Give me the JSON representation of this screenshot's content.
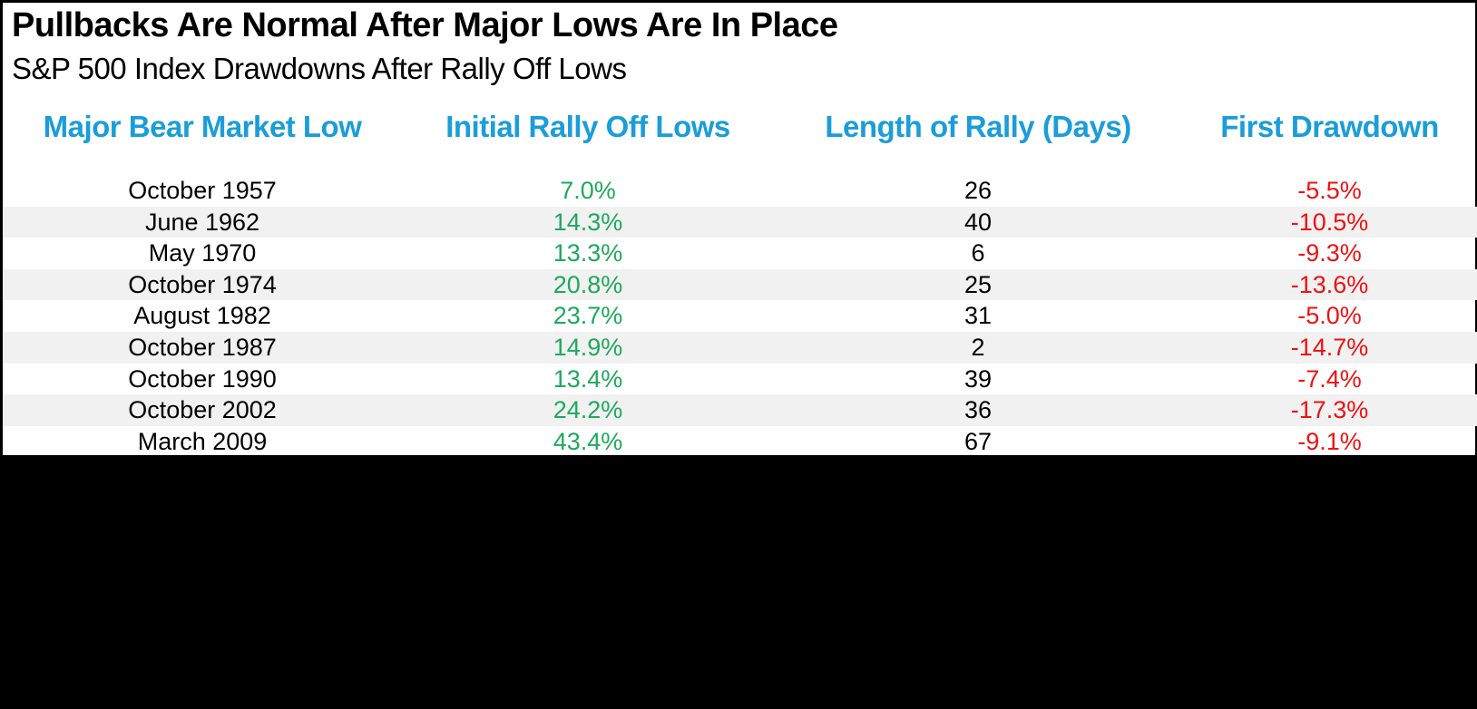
{
  "colors": {
    "accent-blue": "#1B9DD9",
    "positive-green": "#1EA95C",
    "negative-red": "#EE1111",
    "row-stripe": "#F1F1F1",
    "text-black": "#000000",
    "panel-bg": "#FFFFFF",
    "backdrop": "#000000"
  },
  "header": {
    "title": "Pullbacks Are Normal After Major Lows Are In Place",
    "subtitle": "S&P 500 Index Drawdowns After Rally Off Lows"
  },
  "table": {
    "columns": [
      "Major Bear Market Low",
      "Initial Rally Off Lows",
      "Length of Rally (Days)",
      "First Drawdown"
    ],
    "rows": [
      {
        "low": "October 1957",
        "rally": "7.0%",
        "days": "26",
        "drawdown": "-5.5%"
      },
      {
        "low": "June 1962",
        "rally": "14.3%",
        "days": "40",
        "drawdown": "-10.5%"
      },
      {
        "low": "May 1970",
        "rally": "13.3%",
        "days": "6",
        "drawdown": "-9.3%"
      },
      {
        "low": "October 1974",
        "rally": "20.8%",
        "days": "25",
        "drawdown": "-13.6%"
      },
      {
        "low": "August 1982",
        "rally": "23.7%",
        "days": "31",
        "drawdown": "-5.0%"
      },
      {
        "low": "October 1987",
        "rally": "14.9%",
        "days": "2",
        "drawdown": "-14.7%"
      },
      {
        "low": "October 1990",
        "rally": "13.4%",
        "days": "39",
        "drawdown": "-7.4%"
      },
      {
        "low": "October 2002",
        "rally": "24.2%",
        "days": "36",
        "drawdown": "-17.3%"
      },
      {
        "low": "March 2009",
        "rally": "43.4%",
        "days": "67",
        "drawdown": "-9.1%"
      }
    ]
  },
  "chart_data": {
    "type": "table",
    "title": "Pullbacks Are Normal After Major Lows Are In Place",
    "subtitle": "S&P 500 Index Drawdowns After Rally Off Lows",
    "columns": [
      "Major Bear Market Low",
      "Initial Rally Off Lows (%)",
      "Length of Rally (Days)",
      "First Drawdown (%)"
    ],
    "rows": [
      [
        "October 1957",
        7.0,
        26,
        -5.5
      ],
      [
        "June 1962",
        14.3,
        40,
        -10.5
      ],
      [
        "May 1970",
        13.3,
        6,
        -9.3
      ],
      [
        "October 1974",
        20.8,
        25,
        -13.6
      ],
      [
        "August 1982",
        23.7,
        31,
        -5.0
      ],
      [
        "October 1987",
        14.9,
        2,
        -14.7
      ],
      [
        "October 1990",
        13.4,
        39,
        -7.4
      ],
      [
        "October 2002",
        24.2,
        36,
        -17.3
      ],
      [
        "March 2009",
        43.4,
        67,
        -9.1
      ]
    ]
  }
}
